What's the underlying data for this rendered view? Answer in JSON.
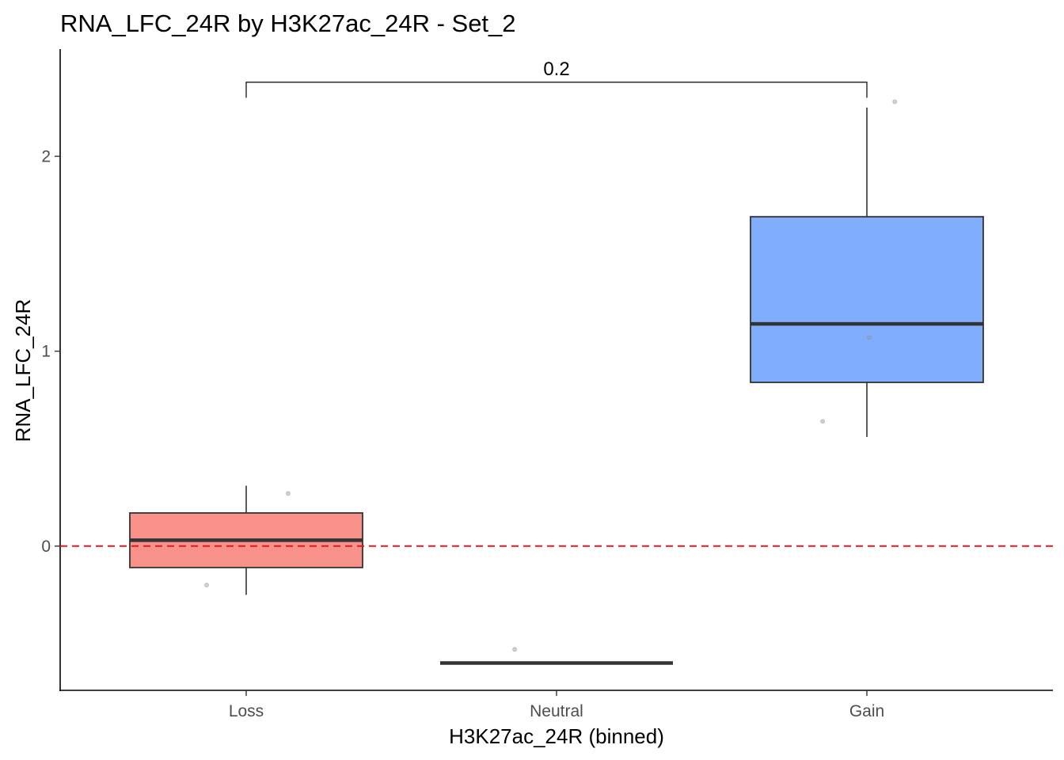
{
  "chart_data": {
    "type": "boxplot",
    "title": "RNA_LFC_24R by H3K27ac_24R - Set_2",
    "xlabel": "H3K27ac_24R (binned)",
    "ylabel": "RNA_LFC_24R",
    "ylim": [
      -0.74,
      2.55
    ],
    "yticks": [
      0,
      1,
      2
    ],
    "ytick_labels": [
      "0",
      "1",
      "2"
    ],
    "grid": false,
    "legend": "none",
    "reference_line": {
      "y": 0,
      "color": "#e31a1c",
      "style": "dashed"
    },
    "categories": [
      "Loss",
      "Neutral",
      "Gain"
    ],
    "boxes": [
      {
        "category": "Loss",
        "color": "#f8918a",
        "whisker_low": -0.25,
        "q1": -0.11,
        "median": 0.03,
        "q3": 0.17,
        "whisker_high": 0.31
      },
      {
        "category": "Neutral",
        "color": "#b8dc8a",
        "whisker_low": -0.6,
        "q1": -0.6,
        "median": -0.6,
        "q3": -0.6,
        "whisker_high": -0.6
      },
      {
        "category": "Gain",
        "color": "#80adfc",
        "whisker_low": 0.56,
        "q1": 0.84,
        "median": 1.14,
        "q3": 1.69,
        "whisker_high": 2.25
      }
    ],
    "points": [
      {
        "category": "Loss",
        "jitter": -0.17,
        "y": -0.2
      },
      {
        "category": "Loss",
        "jitter": 0.18,
        "y": 0.27
      },
      {
        "category": "Neutral",
        "jitter": -0.18,
        "y": -0.53
      },
      {
        "category": "Gain",
        "jitter": -0.19,
        "y": 0.64
      },
      {
        "category": "Gain",
        "jitter": 0.01,
        "y": 1.07
      },
      {
        "category": "Gain",
        "jitter": 0.12,
        "y": 2.28
      }
    ],
    "comparison": {
      "from": "Loss",
      "to": "Gain",
      "label": "0.2",
      "y": 2.38,
      "tip": 2.3
    }
  }
}
